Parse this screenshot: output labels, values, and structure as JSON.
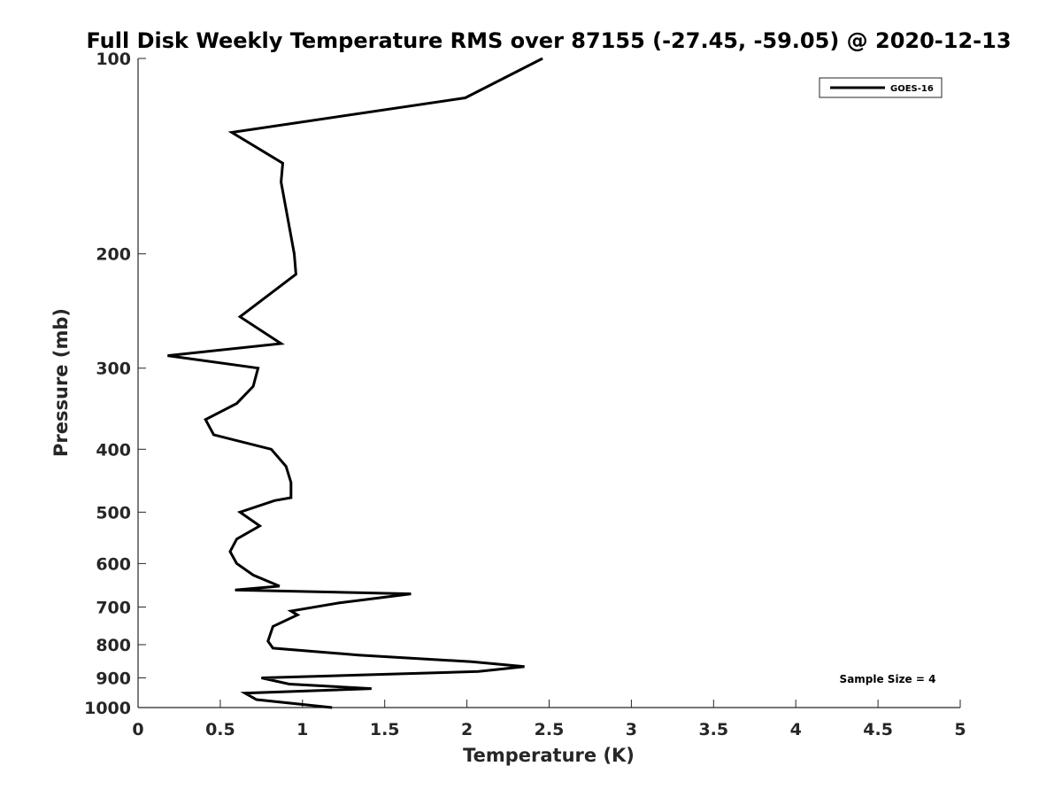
{
  "chart_data": {
    "type": "line",
    "title": "Full Disk Weekly Temperature RMS over 87155 (-27.45, -59.05) @ 2020-12-13",
    "xlabel": "Temperature (K)",
    "ylabel": "Pressure (mb)",
    "xlim": [
      0,
      5
    ],
    "ylim": [
      100,
      1000
    ],
    "y_scale": "log",
    "y_reversed": true,
    "x_ticks": [
      "0",
      "0.5",
      "1",
      "1.5",
      "2",
      "2.5",
      "3",
      "3.5",
      "4",
      "4.5",
      "5"
    ],
    "y_ticks": [
      "100",
      "200",
      "300",
      "400",
      "500",
      "600",
      "700",
      "800",
      "900",
      "1000"
    ],
    "grid": false,
    "legend_position": "top-right",
    "annotation": "Sample Size = 4",
    "series": [
      {
        "name": "GOES-16",
        "color": "#000000",
        "x": [
          2.46,
          1.99,
          0.57,
          0.88,
          0.87,
          0.95,
          0.96,
          0.62,
          0.87,
          0.18,
          0.73,
          0.7,
          0.6,
          0.41,
          0.46,
          0.81,
          0.9,
          0.93,
          0.93,
          0.83,
          0.62,
          0.74,
          0.6,
          0.56,
          0.6,
          0.7,
          0.86,
          0.59,
          1.66,
          1.22,
          0.93,
          0.97,
          0.82,
          0.79,
          0.82,
          1.34,
          2.03,
          2.35,
          2.07,
          0.75,
          0.92,
          1.42,
          0.65,
          0.72,
          1.18
        ],
        "y": [
          100,
          115,
          130,
          145,
          155,
          200,
          215,
          250,
          275,
          287,
          300,
          320,
          340,
          360,
          380,
          400,
          425,
          450,
          475,
          480,
          500,
          525,
          550,
          575,
          600,
          625,
          650,
          659,
          668,
          690,
          710,
          720,
          750,
          790,
          810,
          830,
          850,
          865,
          880,
          900,
          920,
          935,
          950,
          972,
          1000
        ]
      }
    ]
  }
}
